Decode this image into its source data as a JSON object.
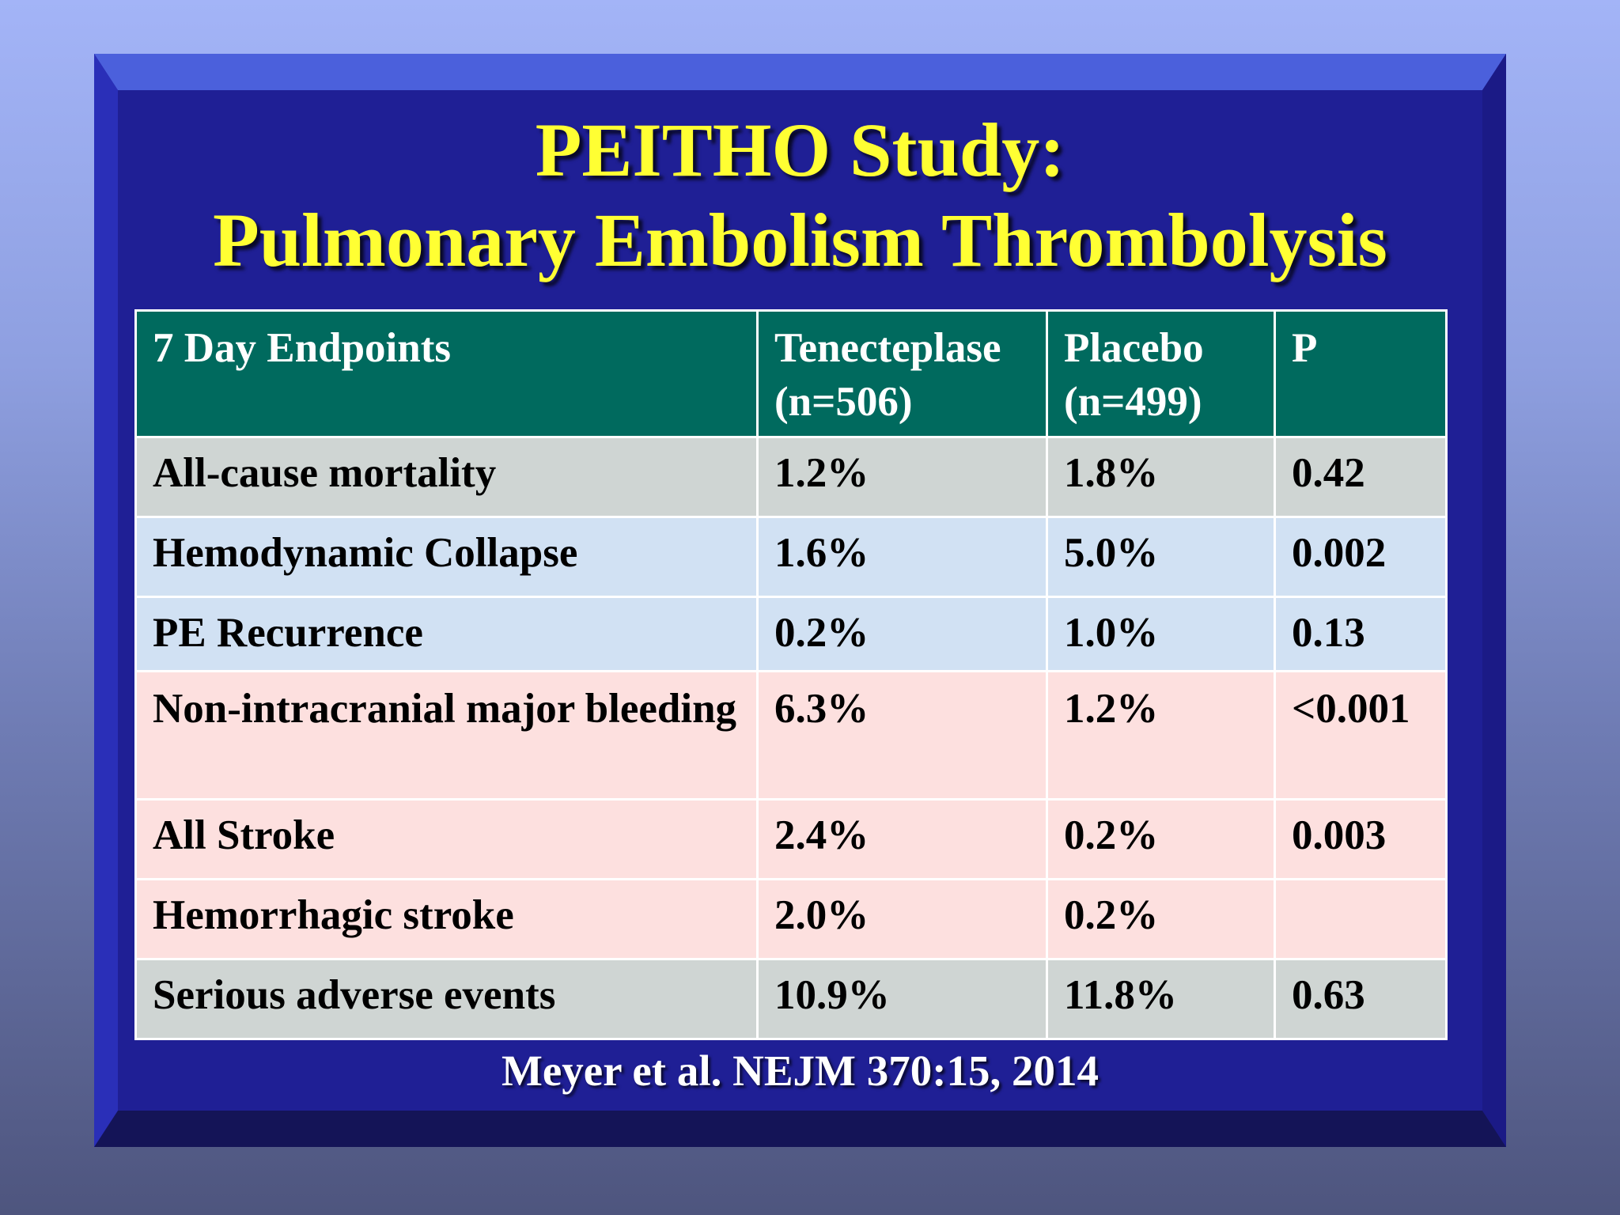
{
  "title": {
    "line1": "PEITHO Study:",
    "line2": "Pulmonary Embolism Thrombolysis"
  },
  "table": {
    "headers": [
      {
        "line1": "7 Day Endpoints",
        "line2": ""
      },
      {
        "line1": "Tenecteplase",
        "line2": "(n=506)"
      },
      {
        "line1": "Placebo",
        "line2": "(n=499)"
      },
      {
        "line1": "P",
        "line2": ""
      }
    ],
    "rows": [
      {
        "endpoint": "All-cause mortality",
        "tenecteplase": "1.2%",
        "placebo": "1.8%",
        "p": "0.42"
      },
      {
        "endpoint": "Hemodynamic Collapse",
        "tenecteplase": "1.6%",
        "placebo": "5.0%",
        "p": "0.002"
      },
      {
        "endpoint": "PE Recurrence",
        "tenecteplase": "0.2%",
        "placebo": "1.0%",
        "p": "0.13"
      },
      {
        "endpoint": "Non-intracranial major bleeding",
        "tenecteplase": "6.3%",
        "placebo": "1.2%",
        "p": "<0.001"
      },
      {
        "endpoint": "All Stroke",
        "tenecteplase": "2.4%",
        "placebo": "0.2%",
        "p": "0.003"
      },
      {
        "endpoint": "Hemorrhagic stroke",
        "tenecteplase": "2.0%",
        "placebo": "0.2%",
        "p": ""
      },
      {
        "endpoint": "Serious adverse events",
        "tenecteplase": "10.9%",
        "placebo": "11.8%",
        "p": "0.63"
      }
    ]
  },
  "citation": "Meyer et al. NEJM 370:15, 2014",
  "colors": {
    "title": "#ffff33",
    "frame": "#1f1f95",
    "header_bg": "#006a5e",
    "row_gray": "#cfd5d3",
    "row_blue": "#d1e1f3",
    "row_pink": "#fde0df"
  }
}
